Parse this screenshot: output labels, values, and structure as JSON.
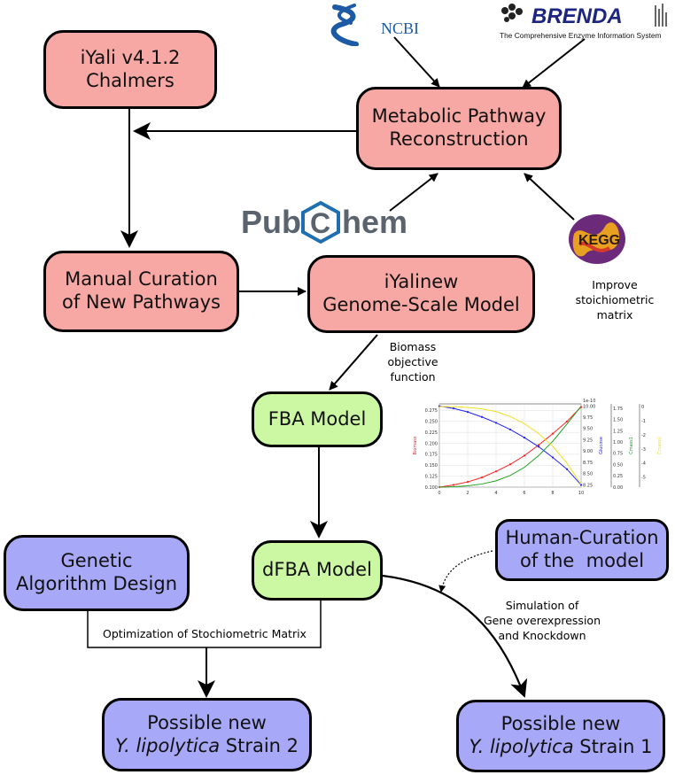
{
  "nodes": {
    "iyali": {
      "line1": "iYali v4.1.2",
      "line2": "Chalmers",
      "color": "#f8a8a4"
    },
    "metabolic": {
      "line1": "Metabolic Pathway",
      "line2": "Reconstruction",
      "color": "#f8a8a4"
    },
    "manual": {
      "line1": "Manual Curation",
      "line2": "of New Pathways",
      "color": "#f8a8a4"
    },
    "iyalinew": {
      "line1": "iYalinew",
      "line2": "Genome-Scale Model",
      "color": "#f8a8a4"
    },
    "fba": {
      "line1": "FBA Model",
      "color": "#ccf8a4"
    },
    "dfba": {
      "line1": "dFBA Model",
      "color": "#ccf8a4"
    },
    "genetic": {
      "line1": "Genetic",
      "line2": "Algorithm Design",
      "color": "#a8a8f8"
    },
    "human": {
      "line1": "Human-Curation",
      "line2": "of the  model",
      "color": "#a8a8f8"
    },
    "strain2": {
      "line1": "Possible new",
      "line2_italic": "Y. lipolytica",
      "line2_rest": " Strain 2",
      "color": "#a8a8f8"
    },
    "strain1": {
      "line1": "Possible new",
      "line2_italic": "Y. lipolytica",
      "line2_rest": " Strain 1",
      "color": "#a8a8f8"
    }
  },
  "labels": {
    "improve": [
      "Improve",
      "stoichiometric matrix"
    ],
    "biomass": [
      "Biomass",
      "objective",
      "function"
    ],
    "optimization": "Optimization of Stochiometric Matrix",
    "simulation": [
      "Simulation of",
      "Gene overexpression",
      "and Knockdown"
    ]
  },
  "logos": {
    "ncbi": "NCBI",
    "brenda": "BRENDA",
    "brenda_sub": "The Comprehensive Enzyme Information System",
    "pubchem_left": "Pub",
    "pubchem_c": "C",
    "pubchem_right": "hem",
    "kegg": "KEGG"
  },
  "chart_data": {
    "type": "line",
    "x": [
      0,
      1,
      2,
      3,
      4,
      5,
      6,
      7,
      8,
      9,
      10
    ],
    "x_ticks": [
      "0",
      "2",
      "4",
      "6",
      "8",
      "10"
    ],
    "series": [
      {
        "name": "Biomass",
        "color": "#ff2020",
        "values": [
          0.1,
          0.105,
          0.112,
          0.122,
          0.136,
          0.152,
          0.172,
          0.196,
          0.222,
          0.25,
          0.283
        ]
      },
      {
        "name": "Glucose",
        "color": "#2020ff",
        "values": [
          10.0,
          9.95,
          9.87,
          9.76,
          9.63,
          9.48,
          9.3,
          9.1,
          8.86,
          8.6,
          8.25
        ]
      },
      {
        "name": "Cmass1",
        "color": "#20a020",
        "values": [
          0.0,
          0.01,
          0.03,
          0.07,
          0.14,
          0.26,
          0.44,
          0.7,
          1.02,
          1.4,
          1.8
        ]
      },
      {
        "name": "Cmass2",
        "color": "#f0e020",
        "values": [
          0.0,
          0.0,
          -0.05,
          -0.15,
          -0.35,
          -0.7,
          -1.2,
          -1.9,
          -2.8,
          -4.0,
          -5.5
        ]
      }
    ],
    "axes": {
      "biomass": {
        "label": "Biomass",
        "ticks": [
          "0.100",
          "0.125",
          "0.150",
          "0.175",
          "0.200",
          "0.225",
          "0.250",
          "0.275"
        ],
        "ylim": [
          0.1,
          0.29
        ]
      },
      "glucose": {
        "label": "Glucose",
        "ticks": [
          "8.25",
          "8.50",
          "8.75",
          "9.00",
          "9.25",
          "9.50",
          "9.75",
          "10.00"
        ],
        "ylim": [
          8.2,
          10.05
        ],
        "exponent": "1e-10"
      },
      "cmass1": {
        "label": "Cmass1",
        "ticks": [
          "0.00",
          "0.25",
          "0.50",
          "0.75",
          "1.00",
          "1.25",
          "1.50",
          "1.75"
        ],
        "ylim": [
          0,
          1.85
        ]
      },
      "cmass2": {
        "label": "Cmass2",
        "ticks": [
          "0",
          "-1",
          "-2",
          "-3",
          "-4",
          "-5"
        ],
        "ylim": [
          -5.7,
          0.2
        ]
      }
    },
    "grid": true
  }
}
